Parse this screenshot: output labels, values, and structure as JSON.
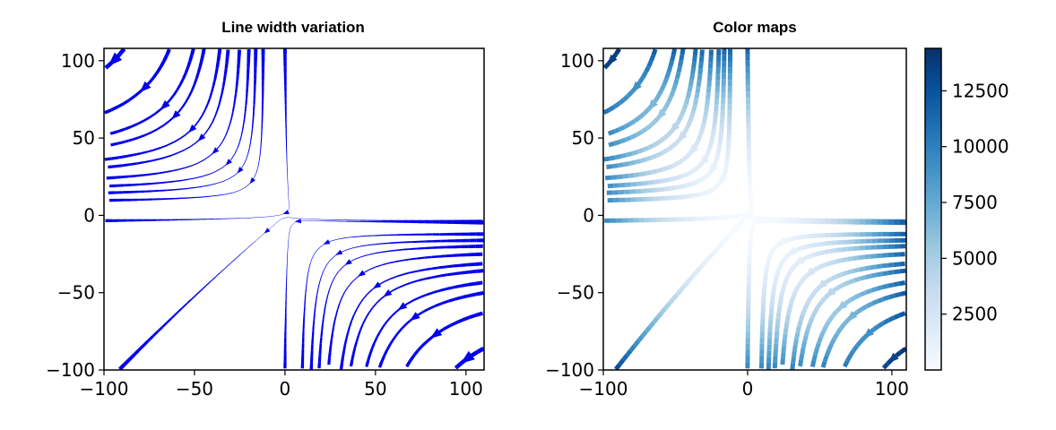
{
  "chart_data": [
    {
      "type": "streamplot",
      "title": "Line width variation",
      "xlim": [
        -100,
        110
      ],
      "ylim": [
        -100,
        108
      ],
      "x_ticks": [
        -100,
        -50,
        0,
        50,
        100
      ],
      "y_ticks": [
        -100,
        -50,
        0,
        50,
        100
      ],
      "x_tick_labels": [
        "−100",
        "−50",
        "0",
        "50",
        "100"
      ],
      "y_tick_labels": [
        "−100",
        "−50",
        "0",
        "50",
        "100"
      ],
      "line_color": "#0000ee",
      "field": {
        "u": "-1 - x^2 + y",
        "v": "1 + x - y^2"
      }
    },
    {
      "type": "streamplot",
      "title": "Color maps",
      "xlim": [
        -100,
        110
      ],
      "ylim": [
        -100,
        108
      ],
      "x_ticks": [
        -100,
        0,
        100
      ],
      "y_ticks": [
        -100,
        -50,
        0,
        50,
        100
      ],
      "x_tick_labels": [
        "−100",
        "0",
        "100"
      ],
      "y_tick_labels": [
        "−100",
        "−50",
        "0",
        "50",
        "100"
      ],
      "colormap": "Blues",
      "colorbar": {
        "range": [
          0,
          14400
        ],
        "ticks": [
          2500,
          5000,
          7500,
          10000,
          12500
        ],
        "tick_labels": [
          "2500",
          "5000",
          "7500",
          "10000",
          "12500"
        ]
      },
      "field": {
        "u": "-1 - x^2 + y",
        "v": "1 + x - y^2"
      }
    }
  ]
}
